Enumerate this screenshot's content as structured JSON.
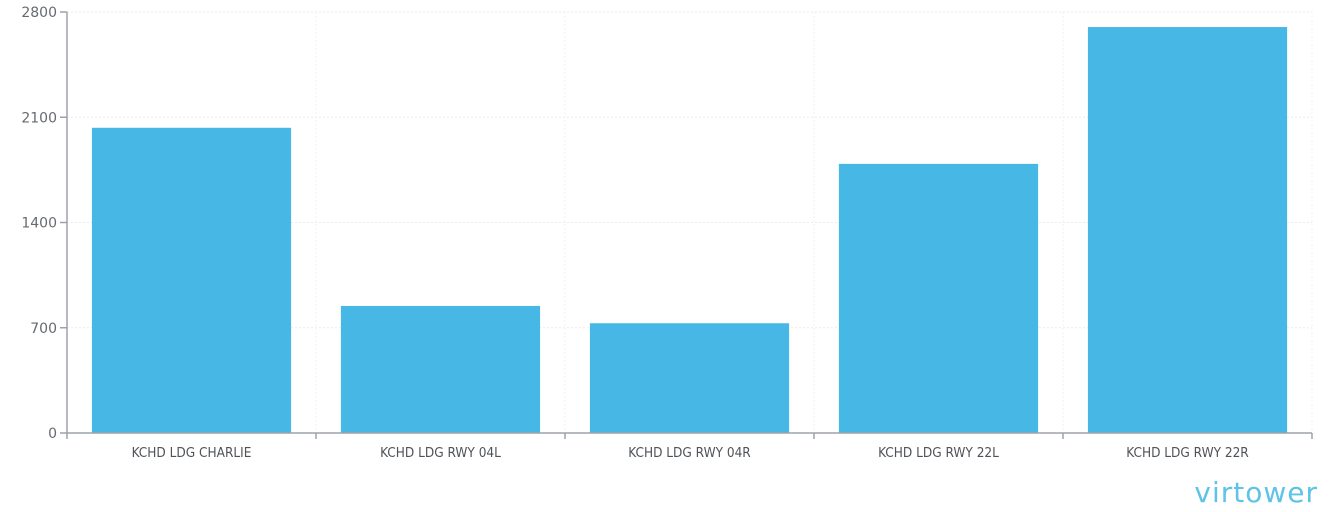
{
  "chart_data": {
    "type": "bar",
    "categories": [
      "KCHD LDG CHARLIE",
      "KCHD LDG RWY 04L",
      "KCHD LDG RWY 04R",
      "KCHD LDG RWY 22L",
      "KCHD LDG RWY 22R"
    ],
    "values": [
      2030,
      845,
      730,
      1790,
      2700
    ],
    "title": "",
    "xlabel": "",
    "ylabel": "",
    "ylim": [
      0,
      2800
    ],
    "yticks": [
      0,
      700,
      1400,
      2100,
      2800
    ],
    "grid": true,
    "legend": "none",
    "bar_color": "#47b8e6"
  },
  "watermark": "virtower"
}
